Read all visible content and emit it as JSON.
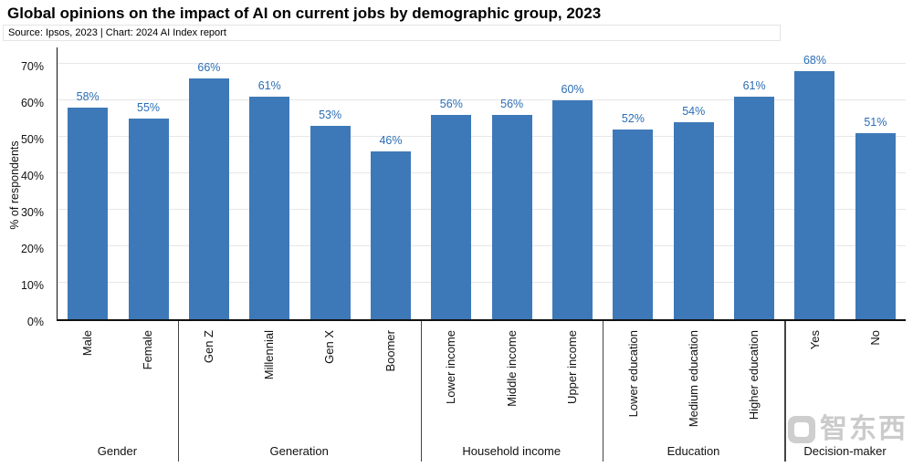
{
  "header": {
    "title": "Global opinions on the impact of AI on current jobs by demographic group, 2023",
    "subtitle": "Source: Ipsos, 2023 | Chart: 2024 AI Index report"
  },
  "chart_data": {
    "type": "bar",
    "title": "Global opinions on the impact of AI on current jobs by demographic group, 2023",
    "ylabel": "% of respondents",
    "ylim": [
      0,
      70
    ],
    "yticks": [
      0,
      10,
      20,
      30,
      40,
      50,
      60,
      70
    ],
    "ytick_suffix": "%",
    "grid": "horizontal",
    "bar_color": "#3d79b8",
    "label_color": "#2a6db5",
    "groups": [
      {
        "label": "Gender",
        "categories": [
          "Male",
          "Female"
        ],
        "values": [
          58,
          55
        ]
      },
      {
        "label": "Generation",
        "categories": [
          "Gen Z",
          "Millennial",
          "Gen X",
          "Boomer"
        ],
        "values": [
          66,
          61,
          53,
          46
        ]
      },
      {
        "label": "Household income",
        "categories": [
          "Lower income",
          "Middle income",
          "Upper income"
        ],
        "values": [
          56,
          56,
          60
        ]
      },
      {
        "label": "Education",
        "categories": [
          "Lower education",
          "Medium education",
          "Higher education"
        ],
        "values": [
          52,
          54,
          61
        ]
      },
      {
        "label": "Decision-maker",
        "categories": [
          "Yes",
          "No"
        ],
        "values": [
          68,
          51
        ]
      }
    ]
  },
  "watermark": {
    "text": "智东西"
  }
}
